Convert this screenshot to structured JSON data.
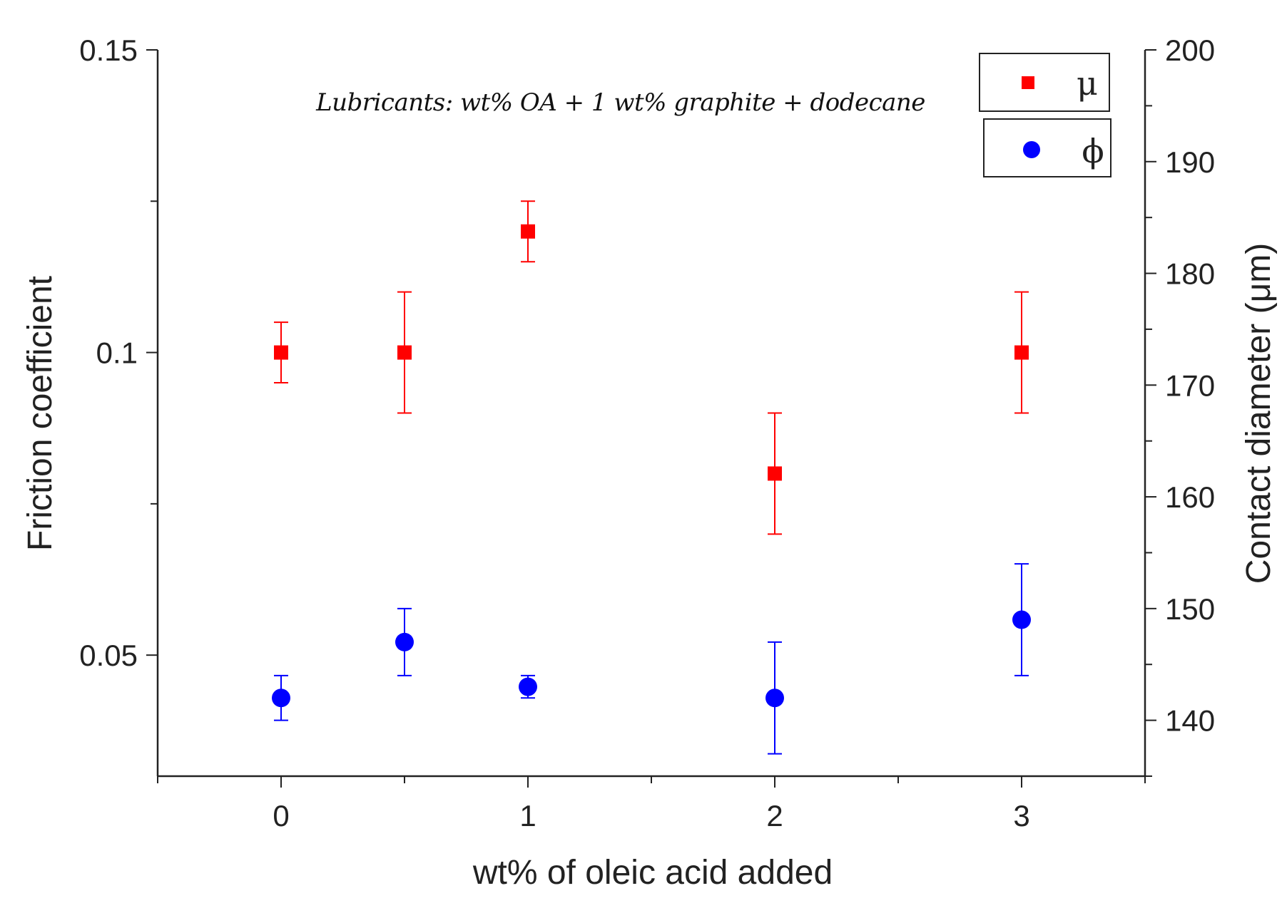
{
  "chart_data": {
    "type": "scatter",
    "title": "Lubricants: wt% OA + 1 wt% graphite + dodecane",
    "xlabel": "wt% of oleic acid added",
    "ylabel": "Friction coefficient",
    "y2label": "Contact diameter (μm)",
    "xlim": [
      -0.5,
      3.5
    ],
    "ylim": [
      0.03,
      0.15
    ],
    "y2lim": [
      135,
      200
    ],
    "x_ticks": [
      0,
      1,
      2,
      3
    ],
    "x_tick_labels": [
      "0",
      "1",
      "2",
      "3"
    ],
    "y_ticks": [
      0.05,
      0.1,
      0.15
    ],
    "y_tick_labels": [
      "0.05",
      "0.1",
      "0.15"
    ],
    "y2_ticks": [
      140,
      150,
      160,
      170,
      180,
      190,
      200
    ],
    "y2_tick_labels": [
      "140",
      "150",
      "160",
      "170",
      "180",
      "190",
      "200"
    ],
    "legend_position": "top-right",
    "series": [
      {
        "name": "μ",
        "axis": "left",
        "marker": "square",
        "color": "#ff0000",
        "x": [
          0,
          0.5,
          1,
          2,
          3
        ],
        "y": [
          0.1,
          0.1,
          0.12,
          0.08,
          0.1
        ],
        "err_low": [
          0.005,
          0.01,
          0.005,
          0.01,
          0.01
        ],
        "err_high": [
          0.005,
          0.01,
          0.005,
          0.01,
          0.01
        ]
      },
      {
        "name": "ϕ",
        "axis": "right",
        "marker": "circle",
        "color": "#0000ff",
        "x": [
          0,
          0.5,
          1,
          2,
          3
        ],
        "y": [
          142,
          147,
          143,
          142,
          149
        ],
        "err_low": [
          2,
          3,
          1,
          5,
          5
        ],
        "err_high": [
          2,
          3,
          1,
          5,
          5
        ]
      }
    ]
  }
}
